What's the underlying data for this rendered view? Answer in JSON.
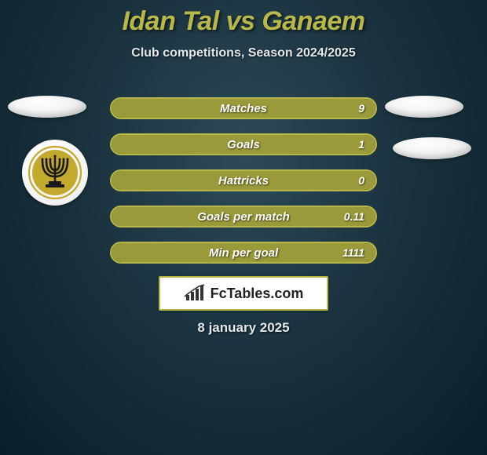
{
  "colors": {
    "title": "#b8b84a",
    "subtitle": "#e4e8ea",
    "bar_border": "#b8b84a",
    "bar_fill": "#9a9a3a",
    "bar_label": "#ffffff",
    "bar_value": "#ffffff",
    "logo_border": "#b8b84a",
    "logo_icon": "#333333",
    "date": "#e4e8ea",
    "badge_accent": "#c3a92e",
    "badge_dark": "#1a1a1a"
  },
  "title": "Idan Tal vs Ganaem",
  "subtitle": "Club competitions, Season 2024/2025",
  "date": "8 january 2025",
  "logo_text": "FcTables.com",
  "bars": [
    {
      "label": "Matches",
      "value": "9",
      "fill_pct": 100
    },
    {
      "label": "Goals",
      "value": "1",
      "fill_pct": 100
    },
    {
      "label": "Hattricks",
      "value": "0",
      "fill_pct": 100
    },
    {
      "label": "Goals per match",
      "value": "0.11",
      "fill_pct": 100
    },
    {
      "label": "Min per goal",
      "value": "1111",
      "fill_pct": 100
    }
  ],
  "badge": {
    "name": "Beitar Jerusalem"
  }
}
